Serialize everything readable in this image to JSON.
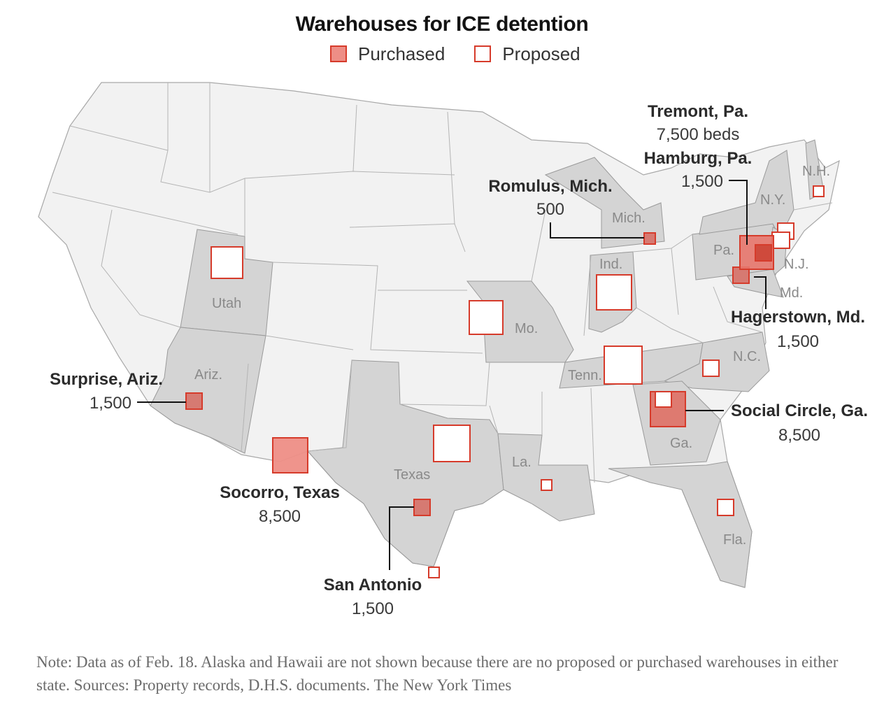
{
  "title": "Warehouses for ICE detention",
  "legend": {
    "purchased": "Purchased",
    "proposed": "Proposed"
  },
  "colors": {
    "purchased_fill": "#e8776d",
    "purchased_stroke": "#d63b2b",
    "proposed_fill": "#ffffff",
    "highlight_state": "#d4d4d4",
    "other_state": "#f2f2f2"
  },
  "state_labels": [
    "Utah",
    "Ariz.",
    "Texas",
    "Mo.",
    "Tenn.",
    "Ind.",
    "Mich.",
    "Pa.",
    "N.Y.",
    "N.H.",
    "N.J.",
    "Md.",
    "N.C.",
    "Ga.",
    "La.",
    "Fla."
  ],
  "callouts": {
    "tremont": {
      "city": "Tremont, Pa.",
      "capacity": "7,500 beds"
    },
    "hamburg": {
      "city": "Hamburg, Pa.",
      "capacity": "1,500"
    },
    "romulus": {
      "city": "Romulus, Mich.",
      "capacity": "500"
    },
    "hagerstown": {
      "city": "Hagerstown, Md.",
      "capacity": "1,500"
    },
    "surprise": {
      "city": "Surprise, Ariz.",
      "capacity": "1,500"
    },
    "social_circle": {
      "city": "Social Circle, Ga.",
      "capacity": "8,500"
    },
    "socorro": {
      "city": "Socorro, Texas",
      "capacity": "8,500"
    },
    "san_antonio": {
      "city": "San Antonio",
      "capacity": "1,500"
    }
  },
  "note": "Note: Data as of Feb. 18. Alaska and Hawaii are not shown because there are no proposed or purchased warehouses in either state.  Sources: Property records, D.H.S. documents.  The New York Times"
}
